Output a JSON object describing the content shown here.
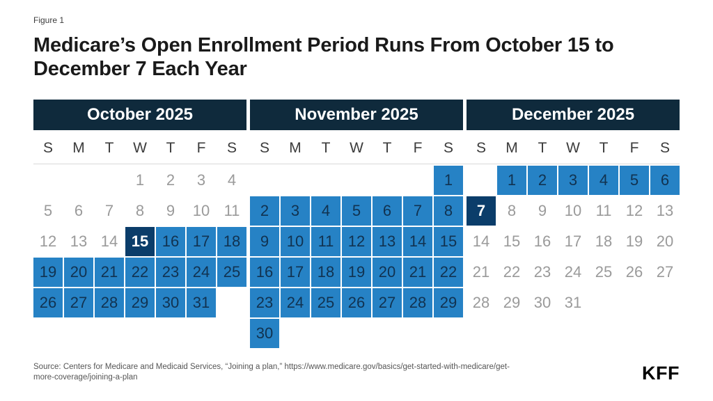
{
  "figure_label": "Figure 1",
  "title": "Medicare’s Open Enrollment Period Runs From October 15 to December 7 Each Year",
  "source": "Source: Centers for Medicare and Medicaid Services, “Joining a plan,” https://www.medicare.gov/basics/get-started-with-medicare/get-more-coverage/joining-a-plan",
  "logo": "KFF",
  "colors": {
    "header_navy": "#0f2a3c",
    "accent_navy": "#0b3d6a",
    "highlight_blue": "#2682c5",
    "day_on_blue": "#113250",
    "muted_day": "#9a9a9a",
    "rule_gray": "#d9d9d9"
  },
  "day_headers": [
    "S",
    "M",
    "T",
    "W",
    "T",
    "F",
    "S"
  ],
  "months": [
    {
      "label": "October 2025",
      "weeks": [
        [
          {
            "d": "",
            "s": "e"
          },
          {
            "d": "",
            "s": "e"
          },
          {
            "d": "",
            "s": "e"
          },
          {
            "d": "1",
            "s": "n"
          },
          {
            "d": "2",
            "s": "n"
          },
          {
            "d": "3",
            "s": "n"
          },
          {
            "d": "4",
            "s": "n"
          }
        ],
        [
          {
            "d": "5",
            "s": "n"
          },
          {
            "d": "6",
            "s": "n"
          },
          {
            "d": "7",
            "s": "n"
          },
          {
            "d": "8",
            "s": "n"
          },
          {
            "d": "9",
            "s": "n"
          },
          {
            "d": "10",
            "s": "n"
          },
          {
            "d": "11",
            "s": "n"
          }
        ],
        [
          {
            "d": "12",
            "s": "n"
          },
          {
            "d": "13",
            "s": "n"
          },
          {
            "d": "14",
            "s": "n"
          },
          {
            "d": "15",
            "s": "a"
          },
          {
            "d": "16",
            "s": "h"
          },
          {
            "d": "17",
            "s": "h"
          },
          {
            "d": "18",
            "s": "h"
          }
        ],
        [
          {
            "d": "19",
            "s": "h"
          },
          {
            "d": "20",
            "s": "h"
          },
          {
            "d": "21",
            "s": "h"
          },
          {
            "d": "22",
            "s": "h"
          },
          {
            "d": "23",
            "s": "h"
          },
          {
            "d": "24",
            "s": "h"
          },
          {
            "d": "25",
            "s": "h"
          }
        ],
        [
          {
            "d": "26",
            "s": "h"
          },
          {
            "d": "27",
            "s": "h"
          },
          {
            "d": "28",
            "s": "h"
          },
          {
            "d": "29",
            "s": "h"
          },
          {
            "d": "30",
            "s": "h"
          },
          {
            "d": "31",
            "s": "h"
          },
          {
            "d": "",
            "s": "e"
          }
        ],
        [
          {
            "d": "",
            "s": "e"
          },
          {
            "d": "",
            "s": "e"
          },
          {
            "d": "",
            "s": "e"
          },
          {
            "d": "",
            "s": "e"
          },
          {
            "d": "",
            "s": "e"
          },
          {
            "d": "",
            "s": "e"
          },
          {
            "d": "",
            "s": "e"
          }
        ]
      ]
    },
    {
      "label": "November 2025",
      "weeks": [
        [
          {
            "d": "",
            "s": "e"
          },
          {
            "d": "",
            "s": "e"
          },
          {
            "d": "",
            "s": "e"
          },
          {
            "d": "",
            "s": "e"
          },
          {
            "d": "",
            "s": "e"
          },
          {
            "d": "",
            "s": "e"
          },
          {
            "d": "1",
            "s": "h"
          }
        ],
        [
          {
            "d": "2",
            "s": "h"
          },
          {
            "d": "3",
            "s": "h"
          },
          {
            "d": "4",
            "s": "h"
          },
          {
            "d": "5",
            "s": "h"
          },
          {
            "d": "6",
            "s": "h"
          },
          {
            "d": "7",
            "s": "h"
          },
          {
            "d": "8",
            "s": "h"
          }
        ],
        [
          {
            "d": "9",
            "s": "h"
          },
          {
            "d": "10",
            "s": "h"
          },
          {
            "d": "11",
            "s": "h"
          },
          {
            "d": "12",
            "s": "h"
          },
          {
            "d": "13",
            "s": "h"
          },
          {
            "d": "14",
            "s": "h"
          },
          {
            "d": "15",
            "s": "h"
          }
        ],
        [
          {
            "d": "16",
            "s": "h"
          },
          {
            "d": "17",
            "s": "h"
          },
          {
            "d": "18",
            "s": "h"
          },
          {
            "d": "19",
            "s": "h"
          },
          {
            "d": "20",
            "s": "h"
          },
          {
            "d": "21",
            "s": "h"
          },
          {
            "d": "22",
            "s": "h"
          }
        ],
        [
          {
            "d": "23",
            "s": "h"
          },
          {
            "d": "24",
            "s": "h"
          },
          {
            "d": "25",
            "s": "h"
          },
          {
            "d": "26",
            "s": "h"
          },
          {
            "d": "27",
            "s": "h"
          },
          {
            "d": "28",
            "s": "h"
          },
          {
            "d": "29",
            "s": "h"
          }
        ],
        [
          {
            "d": "30",
            "s": "h"
          },
          {
            "d": "",
            "s": "e"
          },
          {
            "d": "",
            "s": "e"
          },
          {
            "d": "",
            "s": "e"
          },
          {
            "d": "",
            "s": "e"
          },
          {
            "d": "",
            "s": "e"
          },
          {
            "d": "",
            "s": "e"
          }
        ]
      ]
    },
    {
      "label": "December 2025",
      "weeks": [
        [
          {
            "d": "",
            "s": "e"
          },
          {
            "d": "1",
            "s": "h"
          },
          {
            "d": "2",
            "s": "h"
          },
          {
            "d": "3",
            "s": "h"
          },
          {
            "d": "4",
            "s": "h"
          },
          {
            "d": "5",
            "s": "h"
          },
          {
            "d": "6",
            "s": "h"
          }
        ],
        [
          {
            "d": "7",
            "s": "a"
          },
          {
            "d": "8",
            "s": "n"
          },
          {
            "d": "9",
            "s": "n"
          },
          {
            "d": "10",
            "s": "n"
          },
          {
            "d": "11",
            "s": "n"
          },
          {
            "d": "12",
            "s": "n"
          },
          {
            "d": "13",
            "s": "n"
          }
        ],
        [
          {
            "d": "14",
            "s": "n"
          },
          {
            "d": "15",
            "s": "n"
          },
          {
            "d": "16",
            "s": "n"
          },
          {
            "d": "17",
            "s": "n"
          },
          {
            "d": "18",
            "s": "n"
          },
          {
            "d": "19",
            "s": "n"
          },
          {
            "d": "20",
            "s": "n"
          }
        ],
        [
          {
            "d": "21",
            "s": "n"
          },
          {
            "d": "22",
            "s": "n"
          },
          {
            "d": "23",
            "s": "n"
          },
          {
            "d": "24",
            "s": "n"
          },
          {
            "d": "25",
            "s": "n"
          },
          {
            "d": "26",
            "s": "n"
          },
          {
            "d": "27",
            "s": "n"
          }
        ],
        [
          {
            "d": "28",
            "s": "n"
          },
          {
            "d": "29",
            "s": "n"
          },
          {
            "d": "30",
            "s": "n"
          },
          {
            "d": "31",
            "s": "n"
          },
          {
            "d": "",
            "s": "e"
          },
          {
            "d": "",
            "s": "e"
          },
          {
            "d": "",
            "s": "e"
          }
        ],
        [
          {
            "d": "",
            "s": "e"
          },
          {
            "d": "",
            "s": "e"
          },
          {
            "d": "",
            "s": "e"
          },
          {
            "d": "",
            "s": "e"
          },
          {
            "d": "",
            "s": "e"
          },
          {
            "d": "",
            "s": "e"
          },
          {
            "d": "",
            "s": "e"
          }
        ]
      ]
    }
  ],
  "chart_data": {
    "type": "table",
    "title": "Medicare’s Open Enrollment Period Runs From October 15 to December 7 Each Year",
    "period_start": "October 15, 2025",
    "period_end": "December 7, 2025",
    "endpoint_days_dark_navy": [
      "October 15",
      "December 7"
    ],
    "highlighted_days_blue": {
      "October 2025": [
        16,
        17,
        18,
        19,
        20,
        21,
        22,
        23,
        24,
        25,
        26,
        27,
        28,
        29,
        30,
        31
      ],
      "November 2025": [
        1,
        2,
        3,
        4,
        5,
        6,
        7,
        8,
        9,
        10,
        11,
        12,
        13,
        14,
        15,
        16,
        17,
        18,
        19,
        20,
        21,
        22,
        23,
        24,
        25,
        26,
        27,
        28,
        29,
        30
      ],
      "December 2025": [
        1,
        2,
        3,
        4,
        5,
        6
      ]
    },
    "legend_position": "none",
    "grid": "calendar"
  }
}
